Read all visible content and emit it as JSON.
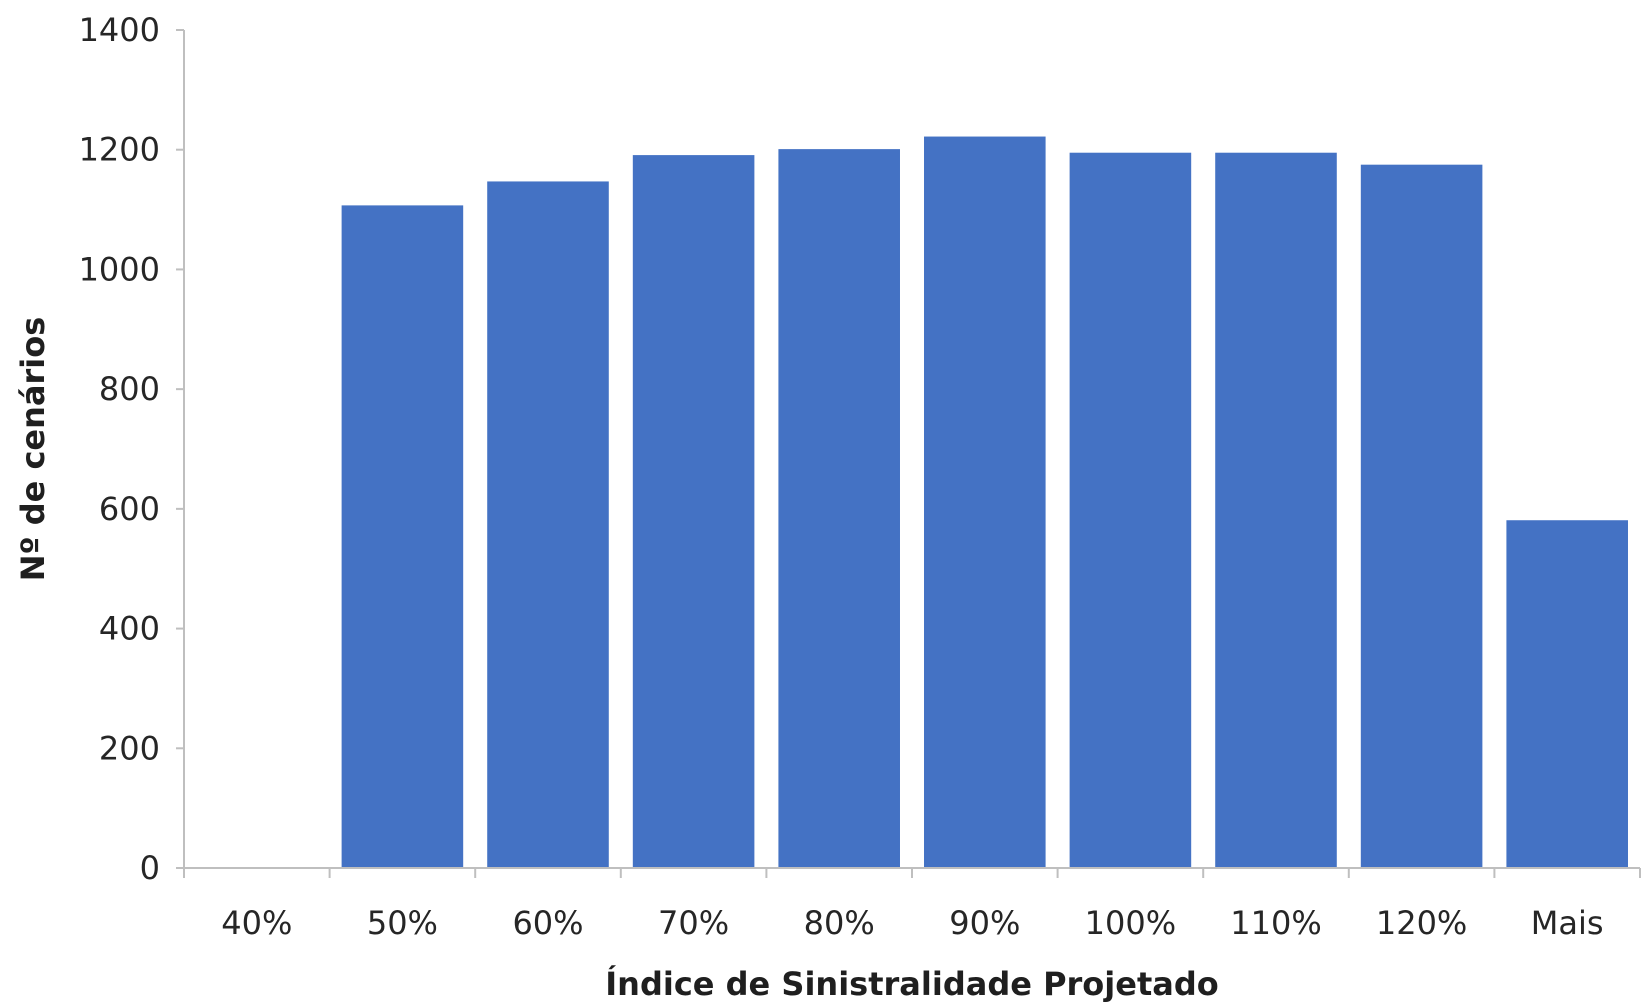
{
  "chart_data": {
    "type": "bar",
    "title": "",
    "xlabel": "Índice de Sinistralidade Projetado",
    "ylabel": "Nº de cenários",
    "categories": [
      "40%",
      "50%",
      "60%",
      "70%",
      "80%",
      "90%",
      "100%",
      "110%",
      "120%",
      "Mais"
    ],
    "values": [
      0,
      1107,
      1147,
      1191,
      1201,
      1222,
      1195,
      1195,
      1175,
      581
    ],
    "ylim": [
      0,
      1400
    ],
    "yticks": [
      0,
      200,
      400,
      600,
      800,
      1000,
      1200,
      1400
    ],
    "grid": false,
    "legend": "none",
    "colors": {
      "bar": "#4472C4",
      "axis": "#bfbfbf",
      "text": "#262626"
    }
  }
}
